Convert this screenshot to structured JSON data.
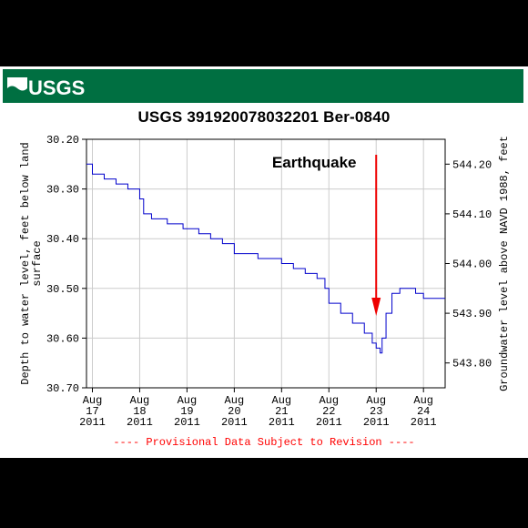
{
  "header": {
    "logo_text": "USGS",
    "banner_color": "#006f41"
  },
  "chart_data": {
    "type": "line",
    "title": "USGS 391920078032201  Ber-0840",
    "ylabel_left": "Depth to water level, feet below land surface",
    "ylabel_right": "Groundwater level above NAVD 1988, feet",
    "ylim_left": [
      30.7,
      30.2
    ],
    "ylim_right": [
      543.75,
      544.25
    ],
    "left_ticks": [
      "30.20",
      "30.30",
      "30.40",
      "30.50",
      "30.60",
      "30.70"
    ],
    "right_ticks": [
      "544.20",
      "544.10",
      "544.00",
      "543.90",
      "543.80"
    ],
    "x_ticks": [
      {
        "month": "Aug",
        "day": "17",
        "year": "2011"
      },
      {
        "month": "Aug",
        "day": "18",
        "year": "2011"
      },
      {
        "month": "Aug",
        "day": "19",
        "year": "2011"
      },
      {
        "month": "Aug",
        "day": "20",
        "year": "2011"
      },
      {
        "month": "Aug",
        "day": "21",
        "year": "2011"
      },
      {
        "month": "Aug",
        "day": "22",
        "year": "2011"
      },
      {
        "month": "Aug",
        "day": "23",
        "year": "2011"
      },
      {
        "month": "Aug",
        "day": "24",
        "year": "2011"
      }
    ],
    "xlim": [
      "2011-08-16 21:00",
      "2011-08-24 11:00"
    ],
    "line_color": "#0000cc",
    "grid": true,
    "series": [
      {
        "points": [
          [
            "2011-08-16 21:00",
            30.25
          ],
          [
            "2011-08-17 00:00",
            30.27
          ],
          [
            "2011-08-17 06:00",
            30.28
          ],
          [
            "2011-08-17 12:00",
            30.29
          ],
          [
            "2011-08-17 18:00",
            30.3
          ],
          [
            "2011-08-18 00:00",
            30.32
          ],
          [
            "2011-08-18 02:00",
            30.35
          ],
          [
            "2011-08-18 06:00",
            30.36
          ],
          [
            "2011-08-18 14:00",
            30.37
          ],
          [
            "2011-08-18 22:00",
            30.38
          ],
          [
            "2011-08-19 06:00",
            30.39
          ],
          [
            "2011-08-19 12:00",
            30.4
          ],
          [
            "2011-08-19 18:00",
            30.41
          ],
          [
            "2011-08-20 00:00",
            30.43
          ],
          [
            "2011-08-20 12:00",
            30.44
          ],
          [
            "2011-08-21 00:00",
            30.45
          ],
          [
            "2011-08-21 06:00",
            30.46
          ],
          [
            "2011-08-21 12:00",
            30.47
          ],
          [
            "2011-08-21 18:00",
            30.48
          ],
          [
            "2011-08-21 22:00",
            30.5
          ],
          [
            "2011-08-22 00:00",
            30.53
          ],
          [
            "2011-08-22 06:00",
            30.55
          ],
          [
            "2011-08-22 12:00",
            30.57
          ],
          [
            "2011-08-22 18:00",
            30.59
          ],
          [
            "2011-08-22 22:00",
            30.61
          ],
          [
            "2011-08-23 00:00",
            30.62
          ],
          [
            "2011-08-23 02:00",
            30.63
          ],
          [
            "2011-08-23 03:00",
            30.6
          ],
          [
            "2011-08-23 05:00",
            30.55
          ],
          [
            "2011-08-23 08:00",
            30.51
          ],
          [
            "2011-08-23 12:00",
            30.5
          ],
          [
            "2011-08-23 20:00",
            30.51
          ],
          [
            "2011-08-24 00:00",
            30.52
          ],
          [
            "2011-08-24 11:00",
            30.52
          ]
        ]
      }
    ],
    "annotation": {
      "text": "Earthquake",
      "arrow_at": "2011-08-23 00:00",
      "arrow_color": "#ee0000"
    },
    "caption": "---- Provisional Data Subject to Revision ----"
  }
}
